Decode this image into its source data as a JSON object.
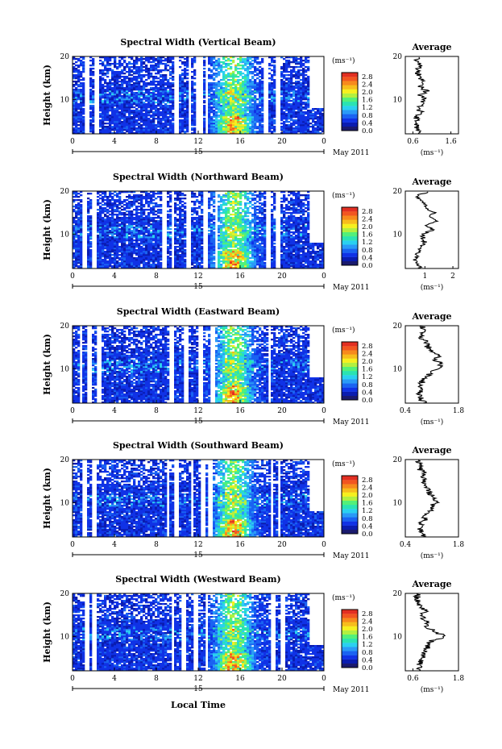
{
  "figure": {
    "xlabel": "Local Time",
    "date_label": "May 2011",
    "colors": [
      "#1a1a6e",
      "#0a1cb0",
      "#1032e6",
      "#1a63f2",
      "#2a9af7",
      "#2ad0f0",
      "#2ae3b2",
      "#52f07a",
      "#b2f040",
      "#f6f01e",
      "#f7bd1c",
      "#f78a1d",
      "#f25621",
      "#e22f22"
    ],
    "panels": [
      {
        "title": "Spectral Width (Vertical Beam)",
        "ylabel": "Height (km)",
        "unit_label": "(ms⁻¹)",
        "avg_title": "Average",
        "avg_xlabel": "(ms⁻¹)",
        "avg_xticks": [
          "0.6",
          "1.6"
        ],
        "avg_range": [
          0.4,
          1.8
        ]
      },
      {
        "title": "Spectral Width (Northward Beam)",
        "ylabel": "Height (km)",
        "unit_label": "(ms⁻¹)",
        "avg_title": "Average",
        "avg_xlabel": "(ms⁻¹)",
        "avg_xticks": [
          "1",
          "2"
        ],
        "avg_range": [
          0.3,
          2.2
        ]
      },
      {
        "title": "Spectral Width (Eastward Beam)",
        "ylabel": "Height (km)",
        "unit_label": "(ms⁻¹)",
        "avg_title": "Average",
        "avg_xlabel": "(ms⁻¹)",
        "avg_xticks": [
          "0.4",
          "1.8"
        ],
        "avg_range": [
          0.4,
          1.8
        ]
      },
      {
        "title": "Spectral Width (Southward Beam)",
        "ylabel": "Height (km)",
        "unit_label": "(ms⁻¹)",
        "avg_title": "Average",
        "avg_xlabel": "(ms⁻¹)",
        "avg_xticks": [
          "0.4",
          "1.8"
        ],
        "avg_range": [
          0.4,
          1.8
        ]
      },
      {
        "title": "Spectral Width (Westward Beam)",
        "ylabel": "Height (km)",
        "unit_label": "(ms⁻¹)",
        "avg_title": "Average",
        "avg_xlabel": "(ms⁻¹)",
        "avg_xticks": [
          "0.6",
          "1.8"
        ],
        "avg_range": [
          0.4,
          1.8
        ]
      }
    ]
  },
  "chart_data": {
    "type": "heatmap",
    "x_ticks": [
      "0",
      "4",
      "8",
      "12",
      "16",
      "20",
      "0"
    ],
    "day_label": "15",
    "xlim": [
      0,
      24
    ],
    "y_ticks": [
      "20",
      "10"
    ],
    "ylim": [
      2,
      20
    ],
    "colorbar_ticks": [
      "2.8",
      "2.4",
      "2.0",
      "1.6",
      "1.2",
      "0.8",
      "0.4",
      "0.0"
    ],
    "colorbar_range": [
      0.0,
      3.0
    ],
    "average_profile_height_km": [
      2,
      3,
      4,
      5,
      6,
      7,
      8,
      9,
      10,
      11,
      12,
      13,
      14,
      15,
      16,
      17,
      18,
      19,
      20
    ],
    "average_profiles": [
      {
        "name": "Vertical",
        "values": [
          0.8,
          0.75,
          0.7,
          0.68,
          0.72,
          0.8,
          0.75,
          0.85,
          0.9,
          0.8,
          0.95,
          0.78,
          0.85,
          0.8,
          0.75,
          0.7,
          0.78,
          0.72,
          0.7
        ]
      },
      {
        "name": "Northward",
        "values": [
          0.9,
          0.7,
          0.65,
          0.7,
          0.75,
          0.8,
          1.0,
          0.95,
          0.9,
          1.3,
          1.1,
          1.4,
          1.2,
          1.35,
          1.1,
          1.0,
          0.85,
          0.7,
          1.2
        ]
      },
      {
        "name": "Eastward",
        "values": [
          0.9,
          0.8,
          0.75,
          0.78,
          0.8,
          0.85,
          0.9,
          1.1,
          1.25,
          1.35,
          1.2,
          1.3,
          1.1,
          1.0,
          0.95,
          0.85,
          0.8,
          0.9,
          0.85
        ]
      },
      {
        "name": "Southward",
        "values": [
          0.9,
          0.8,
          0.78,
          0.82,
          0.9,
          0.95,
          1.05,
          1.1,
          1.2,
          1.15,
          1.05,
          1.0,
          0.95,
          0.9,
          0.85,
          0.9,
          0.75,
          0.8,
          0.7
        ]
      },
      {
        "name": "Westward",
        "values": [
          0.8,
          0.75,
          0.78,
          0.85,
          0.9,
          0.95,
          1.0,
          1.1,
          1.45,
          1.2,
          1.0,
          0.95,
          0.9,
          0.85,
          0.95,
          0.8,
          0.75,
          0.7,
          0.75
        ]
      }
    ]
  }
}
